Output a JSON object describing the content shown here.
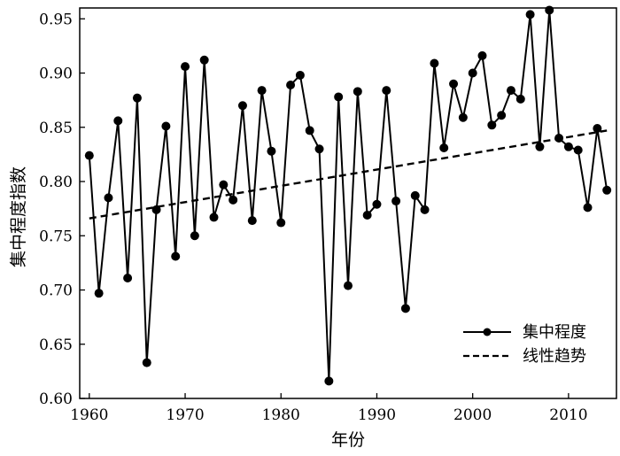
{
  "chart_data": {
    "type": "line",
    "xlabel": "年份",
    "ylabel": "集中程度指数",
    "xlim": [
      1959,
      2015
    ],
    "ylim": [
      0.6,
      0.96
    ],
    "xticks": [
      1960,
      1970,
      1980,
      1990,
      2000,
      2010
    ],
    "yticks": [
      "0.60",
      "0.65",
      "0.70",
      "0.75",
      "0.80",
      "0.85",
      "0.90",
      "0.95"
    ],
    "grid": false,
    "legend_position": "bottom-right",
    "series": [
      {
        "name": "集中程度",
        "style": "solid-with-markers",
        "color": "#000000",
        "x": [
          1960,
          1961,
          1962,
          1963,
          1964,
          1965,
          1966,
          1967,
          1968,
          1969,
          1970,
          1971,
          1972,
          1973,
          1974,
          1975,
          1976,
          1977,
          1978,
          1979,
          1980,
          1981,
          1982,
          1983,
          1984,
          1985,
          1986,
          1987,
          1988,
          1989,
          1990,
          1991,
          1992,
          1993,
          1994,
          1995,
          1996,
          1997,
          1998,
          1999,
          2000,
          2001,
          2002,
          2003,
          2004,
          2005,
          2006,
          2007,
          2008,
          2009,
          2010,
          2011,
          2012,
          2013,
          2014
        ],
        "values": [
          0.824,
          0.697,
          0.785,
          0.856,
          0.711,
          0.877,
          0.633,
          0.774,
          0.851,
          0.731,
          0.906,
          0.75,
          0.912,
          0.767,
          0.797,
          0.783,
          0.87,
          0.764,
          0.884,
          0.828,
          0.762,
          0.889,
          0.898,
          0.847,
          0.83,
          0.616,
          0.878,
          0.704,
          0.883,
          0.769,
          0.779,
          0.884,
          0.782,
          0.683,
          0.787,
          0.774,
          0.909,
          0.831,
          0.89,
          0.859,
          0.9,
          0.916,
          0.852,
          0.861,
          0.884,
          0.876,
          0.954,
          0.832,
          0.958,
          0.84,
          0.832,
          0.829,
          0.776,
          0.849,
          0.792
        ]
      },
      {
        "name": "线性趋势",
        "style": "dashed",
        "color": "#000000",
        "x": [
          1960,
          2014
        ],
        "values": [
          0.766,
          0.847
        ]
      }
    ]
  }
}
